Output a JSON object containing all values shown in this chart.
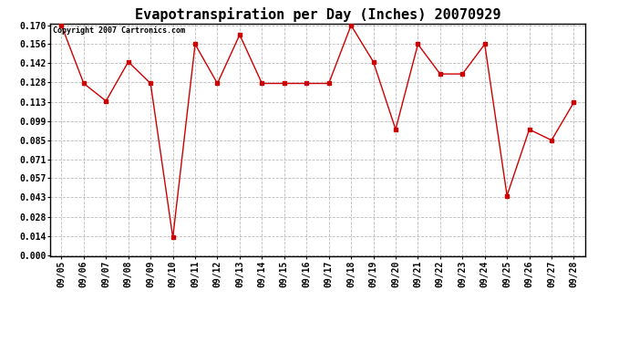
{
  "title": "Evapotranspiration per Day (Inches) 20070929",
  "copyright": "Copyright 2007 Cartronics.com",
  "dates": [
    "09/05",
    "09/06",
    "09/07",
    "09/08",
    "09/09",
    "09/10",
    "09/11",
    "09/12",
    "09/13",
    "09/14",
    "09/15",
    "09/16",
    "09/17",
    "09/18",
    "09/19",
    "09/20",
    "09/21",
    "09/22",
    "09/23",
    "09/24",
    "09/25",
    "09/26",
    "09/27",
    "09/28"
  ],
  "values": [
    0.17,
    0.127,
    0.114,
    0.143,
    0.127,
    0.013,
    0.156,
    0.127,
    0.163,
    0.127,
    0.127,
    0.127,
    0.127,
    0.17,
    0.143,
    0.093,
    0.156,
    0.134,
    0.134,
    0.156,
    0.044,
    0.093,
    0.085,
    0.113
  ],
  "yticks": [
    0.0,
    0.014,
    0.028,
    0.043,
    0.057,
    0.071,
    0.085,
    0.099,
    0.113,
    0.128,
    0.142,
    0.156,
    0.17
  ],
  "line_color": "#cc0000",
  "marker": "s",
  "marker_size": 3,
  "bg_color": "#ffffff",
  "grid_color": "#bbbbbb",
  "title_fontsize": 11,
  "tick_fontsize": 7,
  "copyright_fontsize": 6,
  "ylim_min": 0.0,
  "ylim_max": 0.17
}
